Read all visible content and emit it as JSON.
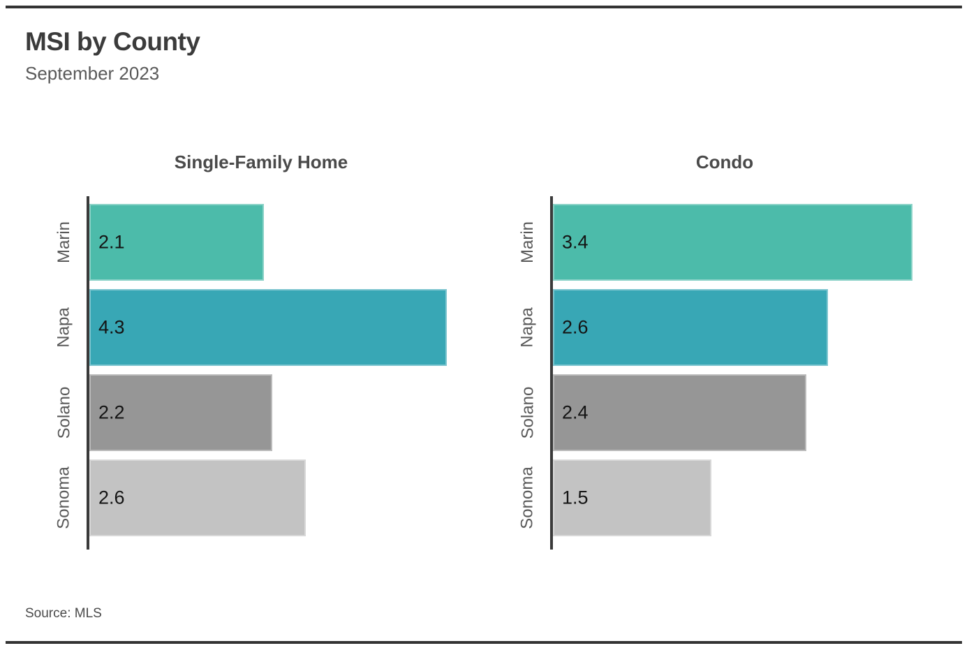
{
  "page": {
    "title": "MSI by County",
    "subtitle": "September 2023",
    "source": "Source: MLS"
  },
  "colors": {
    "marin": "#4CBBAA",
    "napa": "#38A7B5",
    "solano": "#969696",
    "sonoma": "#C3C3C3",
    "axis": "#3A3A3A",
    "rule": "#333333",
    "label_text": "#595959",
    "value_text": "#141414"
  },
  "chart_data": [
    {
      "type": "bar",
      "orientation": "horizontal",
      "title": "Single-Family Home",
      "categories": [
        "Marin",
        "Napa",
        "Solano",
        "Sonoma"
      ],
      "values": [
        2.1,
        4.3,
        2.2,
        2.6
      ],
      "data_labels": [
        "2.1",
        "4.3",
        "2.2",
        "2.6"
      ],
      "bar_colors": [
        "#4CBBAA",
        "#38A7B5",
        "#969696",
        "#C3C3C3"
      ],
      "xlim": [
        0,
        4.7
      ],
      "grid": false,
      "legend": false
    },
    {
      "type": "bar",
      "orientation": "horizontal",
      "title": "Condo",
      "categories": [
        "Marin",
        "Napa",
        "Solano",
        "Sonoma"
      ],
      "values": [
        3.4,
        2.6,
        2.4,
        1.5
      ],
      "data_labels": [
        "3.4",
        "2.6",
        "2.4",
        "1.5"
      ],
      "bar_colors": [
        "#4CBBAA",
        "#38A7B5",
        "#969696",
        "#C3C3C3"
      ],
      "xlim": [
        0,
        3.7
      ],
      "grid": false,
      "legend": false
    }
  ]
}
